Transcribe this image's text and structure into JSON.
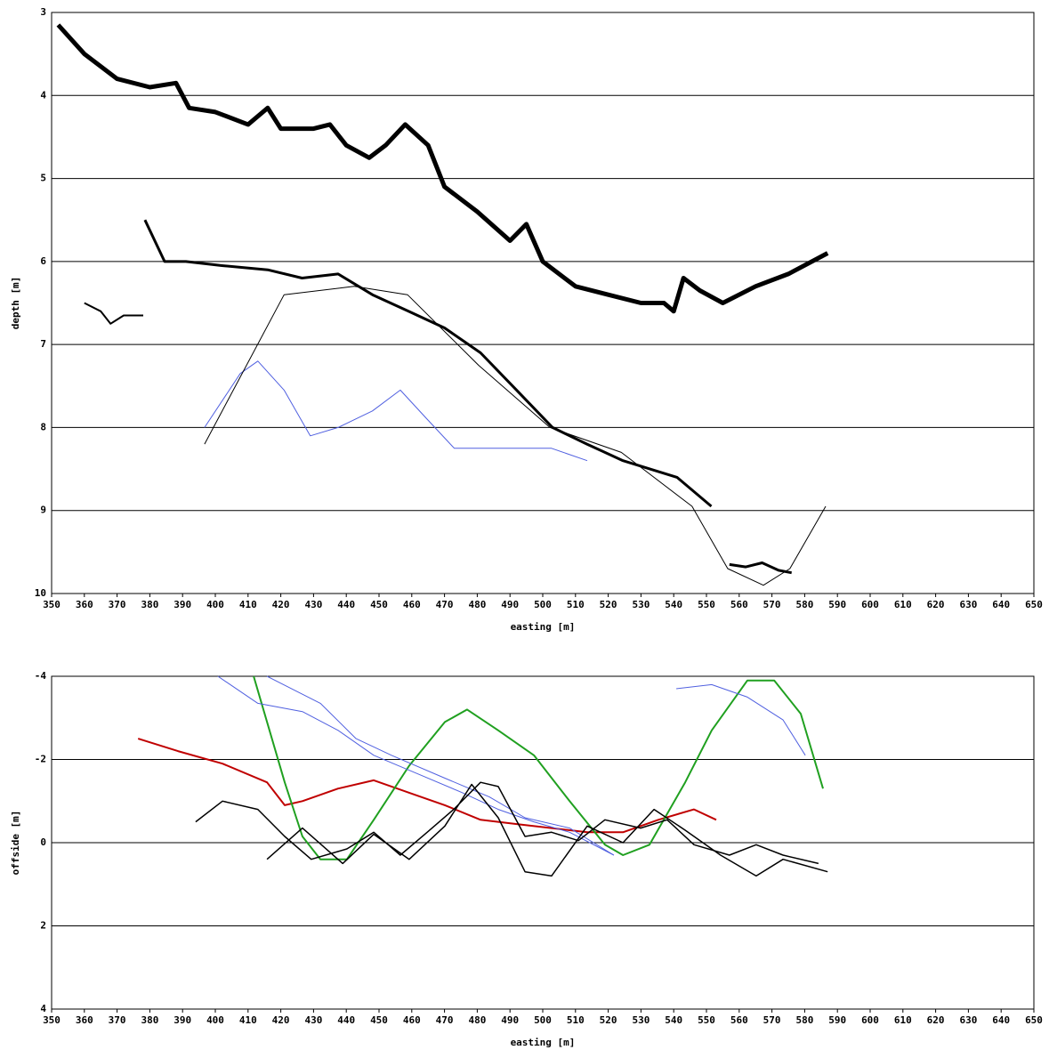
{
  "chart_data": [
    {
      "type": "line",
      "xlabel": "easting [m]",
      "ylabel": "depth [m]",
      "xlim": [
        350,
        650
      ],
      "xticks": [
        350,
        360,
        370,
        380,
        390,
        400,
        410,
        420,
        430,
        440,
        450,
        460,
        470,
        480,
        490,
        500,
        510,
        520,
        530,
        540,
        550,
        560,
        570,
        580,
        590,
        600,
        610,
        620,
        630,
        640,
        650
      ],
      "ylim": [
        3,
        10
      ],
      "yticks": [
        3,
        4,
        5,
        6,
        7,
        8,
        9,
        10
      ],
      "y_inverted": true,
      "grid": true,
      "series": [
        {
          "color": "#000000",
          "width": 5,
          "x": [
            352,
            360,
            370,
            380,
            388,
            392,
            400,
            410,
            416,
            420,
            430,
            435,
            440,
            447,
            452,
            458,
            465,
            470,
            480,
            490,
            495,
            500,
            510,
            520,
            530,
            537,
            540,
            543,
            548,
            555,
            565,
            575,
            587
          ],
          "values": [
            3.15,
            3.5,
            3.8,
            3.9,
            3.85,
            4.15,
            4.2,
            4.35,
            4.15,
            4.4,
            4.4,
            4.35,
            4.6,
            4.75,
            4.6,
            4.35,
            4.6,
            5.1,
            5.4,
            5.75,
            5.55,
            6.0,
            6.3,
            6.4,
            6.5,
            6.5,
            6.6,
            6.2,
            6.35,
            6.5,
            6.3,
            6.15,
            5.9
          ]
        },
        {
          "color": "#000000",
          "width": 3,
          "x": [
            378.5,
            384.5,
            391,
            402,
            416,
            426.5,
            437.5,
            448,
            459,
            470,
            481,
            492,
            503,
            513.5,
            524.5,
            541,
            551.5
          ],
          "values": [
            5.5,
            6.0,
            6.0,
            6.05,
            6.1,
            6.2,
            6.15,
            6.4,
            6.6,
            6.8,
            7.1,
            7.55,
            8.0,
            8.2,
            8.4,
            8.6,
            8.95
          ]
        },
        {
          "color": "#000000",
          "width": 2,
          "x": [
            360,
            365,
            368,
            372,
            378
          ],
          "values": [
            6.5,
            6.6,
            6.75,
            6.65,
            6.65
          ]
        },
        {
          "color": "#000000",
          "width": 3,
          "x": [
            557,
            562,
            567,
            572,
            576
          ],
          "values": [
            9.65,
            9.68,
            9.63,
            9.72,
            9.75
          ]
        },
        {
          "color": "#5060e0",
          "width": 1,
          "x": [
            396.7,
            407.6,
            413,
            421,
            429,
            437.5,
            448,
            456.5,
            464.7,
            473,
            486.4,
            502.7,
            513.6
          ],
          "values": [
            8.0,
            7.35,
            7.2,
            7.55,
            8.1,
            8.0,
            7.8,
            7.55,
            7.9,
            8.25,
            8.25,
            8.25,
            8.4
          ]
        },
        {
          "color": "#000000",
          "width": 1,
          "x": [
            396.7,
            421,
            442.4,
            458.7,
            480.4,
            502.2,
            524,
            545.6,
            556.5,
            567.4,
            575.5,
            586.4
          ],
          "values": [
            8.2,
            6.4,
            6.3,
            6.4,
            7.25,
            8.0,
            8.3,
            8.95,
            9.7,
            9.9,
            9.7,
            8.95
          ]
        }
      ]
    },
    {
      "type": "line",
      "xlabel": "easting [m]",
      "ylabel": "offside [m]",
      "xlim": [
        350,
        650
      ],
      "xticks": [
        350,
        360,
        370,
        380,
        390,
        400,
        410,
        420,
        430,
        440,
        450,
        460,
        470,
        480,
        490,
        500,
        510,
        520,
        530,
        540,
        550,
        560,
        570,
        580,
        590,
        600,
        610,
        620,
        630,
        640,
        650
      ],
      "ylim": [
        -4,
        4
      ],
      "yticks": [
        -4,
        -2,
        0,
        2,
        4
      ],
      "y_inverted": true,
      "grid": true,
      "series": [
        {
          "color": "#c00000",
          "width": 2,
          "x": [
            376.4,
            388.6,
            402.2,
            415.8,
            421.2,
            426.6,
            437.5,
            448.4,
            459.2,
            470.1,
            481,
            491.8,
            502.7,
            513.6,
            524.5,
            535.3,
            546.2,
            553
          ],
          "values": [
            -2.5,
            -2.2,
            -1.9,
            -1.45,
            -0.9,
            -1.0,
            -1.3,
            -1.5,
            -1.2,
            -0.9,
            -0.55,
            -0.45,
            -0.35,
            -0.25,
            -0.25,
            -0.55,
            -0.8,
            -0.55
          ]
        },
        {
          "color": "#20a020",
          "width": 2,
          "x": [
            411.7,
            421.2,
            426.6,
            432.1,
            440.2,
            448.4,
            459.2,
            470.1,
            476.9,
            486.4,
            497.3,
            508.2,
            519,
            524.5,
            532.6,
            543.5,
            551.6,
            562.5,
            570.7,
            578.8,
            585.6
          ],
          "values": [
            -4,
            -1.45,
            -0.15,
            0.4,
            0.4,
            -0.55,
            -1.85,
            -2.9,
            -3.2,
            -2.7,
            -2.1,
            -1.0,
            0.05,
            0.3,
            0.05,
            -1.45,
            -2.7,
            -3.9,
            -3.9,
            -3.1,
            -1.3
          ]
        },
        {
          "color": "#5060e0",
          "width": 1,
          "x": [
            400.8,
            413,
            426.6,
            437.5,
            448.4,
            462,
            475.5,
            486.4,
            497.3,
            508.2,
            521.7
          ],
          "values": [
            -4,
            -3.35,
            -3.15,
            -2.7,
            -2.1,
            -1.65,
            -1.2,
            -0.8,
            -0.5,
            -0.25,
            0.3
          ]
        },
        {
          "color": "#5060e0",
          "width": 1,
          "x": [
            415.8,
            432.1,
            443,
            453.8,
            470.1,
            483.7,
            494.6,
            508.2,
            521.7
          ],
          "values": [
            -4,
            -3.35,
            -2.5,
            -2.1,
            -1.55,
            -1.1,
            -0.6,
            -0.35,
            0.3
          ]
        },
        {
          "color": "#5060e0",
          "width": 1,
          "x": [
            540.8,
            551.6,
            562.5,
            573.4,
            580.2
          ],
          "values": [
            -3.7,
            -3.8,
            -3.5,
            -2.95,
            -2.1
          ]
        },
        {
          "color": "#000000",
          "width": 1.5,
          "x": [
            394,
            402.2,
            413,
            421.2,
            429.3,
            440.2,
            448.4,
            456.5,
            464.7,
            472.8,
            481,
            486.4,
            494.6,
            502.7,
            510.9,
            519,
            529.9,
            538,
            546.2,
            557,
            565.2,
            573.4,
            584.2
          ],
          "values": [
            -0.5,
            -1.0,
            -0.8,
            -0.15,
            0.4,
            0.15,
            -0.25,
            0.3,
            -0.25,
            -0.8,
            -1.45,
            -1.35,
            -0.15,
            -0.25,
            -0.05,
            -0.55,
            -0.35,
            -0.55,
            0.05,
            0.3,
            0.05,
            0.3,
            0.5
          ]
        },
        {
          "color": "#000000",
          "width": 1.5,
          "x": [
            415.8,
            426.6,
            438.9,
            448.4,
            459.2,
            470.1,
            478.3,
            486.4,
            494.6,
            502.7,
            513.6,
            524.5,
            534,
            543.5,
            554.3,
            565.2,
            573.4,
            587
          ],
          "values": [
            0.4,
            -0.35,
            0.5,
            -0.2,
            0.4,
            -0.4,
            -1.4,
            -0.6,
            0.7,
            0.8,
            -0.4,
            0.0,
            -0.8,
            -0.3,
            0.3,
            0.8,
            0.4,
            0.7
          ]
        }
      ]
    }
  ]
}
